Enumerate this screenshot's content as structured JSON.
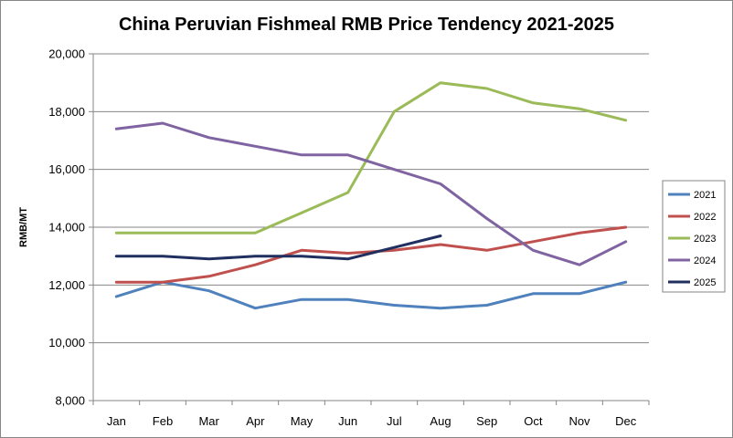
{
  "chart_data": {
    "type": "line",
    "title": "China Peruvian Fishmeal RMB Price Tendency 2021-2025",
    "xlabel": "",
    "ylabel": "RMB/MT",
    "categories": [
      "Jan",
      "Feb",
      "Mar",
      "Apr",
      "May",
      "Jun",
      "Jul",
      "Aug",
      "Sep",
      "Oct",
      "Nov",
      "Dec"
    ],
    "ylim": [
      8000,
      20000
    ],
    "yticks": [
      8000,
      10000,
      12000,
      14000,
      16000,
      18000,
      20000
    ],
    "ytick_labels": [
      "8,000",
      "10,000",
      "12,000",
      "14,000",
      "16,000",
      "18,000",
      "20,000"
    ],
    "grid": true,
    "legend_position": "right",
    "series": [
      {
        "name": "2021",
        "color": "#4f81bd",
        "values": [
          11600,
          12100,
          11800,
          11200,
          11500,
          11500,
          11300,
          11200,
          11300,
          11700,
          11700,
          12100
        ]
      },
      {
        "name": "2022",
        "color": "#c0504d",
        "values": [
          12100,
          12100,
          12300,
          12700,
          13200,
          13100,
          13200,
          13400,
          13200,
          13500,
          13800,
          14000
        ]
      },
      {
        "name": "2023",
        "color": "#9bbb59",
        "values": [
          13800,
          13800,
          13800,
          13800,
          14500,
          15200,
          18000,
          19000,
          18800,
          18300,
          18100,
          17700
        ]
      },
      {
        "name": "2024",
        "color": "#8064a2",
        "values": [
          17400,
          17600,
          17100,
          16800,
          16500,
          16500,
          16000,
          15500,
          14300,
          13200,
          12700,
          13500
        ]
      },
      {
        "name": "2025",
        "color": "#1f2f5f",
        "values": [
          13000,
          13000,
          12900,
          13000,
          13000,
          12900,
          13300,
          13700,
          null,
          null,
          null,
          null
        ]
      }
    ]
  }
}
